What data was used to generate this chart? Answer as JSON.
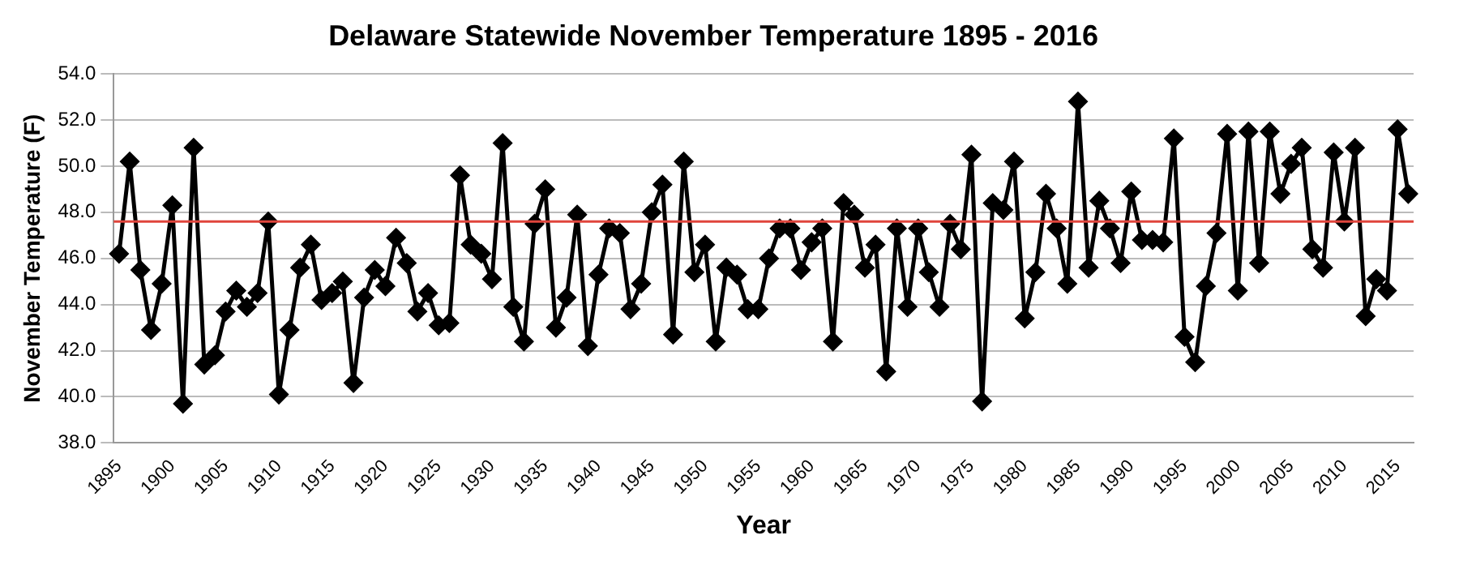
{
  "chart_data": {
    "type": "line",
    "title": "Delaware Statewide November Temperature 1895 - 2016",
    "xlabel": "Year",
    "ylabel": "November Temperature (F)",
    "categories": [
      "1895",
      null,
      null,
      null,
      null,
      "1900",
      null,
      null,
      null,
      null,
      "1905",
      null,
      null,
      null,
      null,
      "1910",
      null,
      null,
      null,
      null,
      "1915",
      null,
      null,
      null,
      null,
      "1920",
      null,
      null,
      null,
      null,
      "1925",
      null,
      null,
      null,
      null,
      "1930",
      null,
      null,
      null,
      null,
      "1935",
      null,
      null,
      null,
      null,
      "1940",
      null,
      null,
      null,
      null,
      "1945",
      null,
      null,
      null,
      null,
      "1950",
      null,
      null,
      null,
      null,
      "1955",
      null,
      null,
      null,
      null,
      "1960",
      null,
      null,
      null,
      null,
      "1965",
      null,
      null,
      null,
      null,
      "1970",
      null,
      null,
      null,
      null,
      "1975",
      null,
      null,
      null,
      null,
      "1980",
      null,
      null,
      null,
      null,
      "1985",
      null,
      null,
      null,
      null,
      "1990",
      null,
      null,
      null,
      null,
      "1995",
      null,
      null,
      null,
      null,
      "2000",
      null,
      null,
      null,
      null,
      "2005",
      null,
      null,
      null,
      null,
      "2010",
      null,
      null,
      null,
      null,
      "2015",
      null
    ],
    "series": [
      {
        "color": "#000000",
        "values": [
          46.2,
          50.2,
          45.5,
          42.9,
          44.9,
          48.3,
          39.7,
          50.8,
          41.4,
          41.8,
          43.7,
          44.6,
          43.9,
          44.5,
          47.6,
          40.1,
          42.9,
          45.6,
          46.6,
          44.2,
          44.5,
          45.0,
          40.6,
          44.3,
          45.5,
          44.8,
          46.9,
          45.8,
          43.7,
          44.5,
          43.1,
          43.2,
          49.6,
          46.6,
          46.2,
          45.1,
          51.0,
          43.9,
          42.4,
          47.5,
          49.0,
          43.0,
          44.3,
          47.9,
          42.2,
          45.3,
          47.3,
          47.1,
          43.8,
          44.9,
          48.0,
          49.2,
          42.7,
          50.2,
          45.4,
          46.6,
          42.4,
          45.6,
          45.3,
          43.8,
          43.8,
          46.0,
          47.3,
          47.3,
          45.5,
          46.7,
          47.3,
          42.4,
          48.4,
          47.9,
          45.6,
          46.6,
          41.1,
          47.3,
          43.9,
          47.3,
          45.4,
          43.9,
          47.5,
          46.4,
          50.5,
          39.8,
          48.4,
          48.1,
          50.2,
          43.4,
          45.4,
          48.8,
          47.3,
          44.9,
          52.8,
          45.6,
          48.5,
          47.3,
          45.8,
          48.9,
          46.8,
          46.8,
          46.7,
          51.2,
          42.6,
          41.5,
          44.8,
          47.1,
          51.4,
          44.6,
          51.5,
          45.8,
          51.5,
          48.8,
          50.1,
          50.8,
          46.4,
          45.6,
          50.6,
          47.6,
          50.8,
          43.5,
          45.1,
          44.6,
          51.6,
          48.8
        ]
      }
    ],
    "ylim": [
      38,
      54
    ],
    "yticks": [
      {
        "value": 38,
        "label": "38.0"
      },
      {
        "value": 40,
        "label": "40.0"
      },
      {
        "value": 42,
        "label": "42.0"
      },
      {
        "value": 44,
        "label": "44.0"
      },
      {
        "value": 46,
        "label": "46.0"
      },
      {
        "value": 48,
        "label": "48.0"
      },
      {
        "value": 50,
        "label": "50.0"
      },
      {
        "value": 52,
        "label": "52.0"
      },
      {
        "value": 54,
        "label": "54.0"
      }
    ],
    "ref_lines": [
      {
        "axis": "y",
        "value": 47.6,
        "color": "#e0453c"
      }
    ],
    "grid": "y",
    "legend": false,
    "marker": "diamond",
    "line_style": "solid"
  }
}
